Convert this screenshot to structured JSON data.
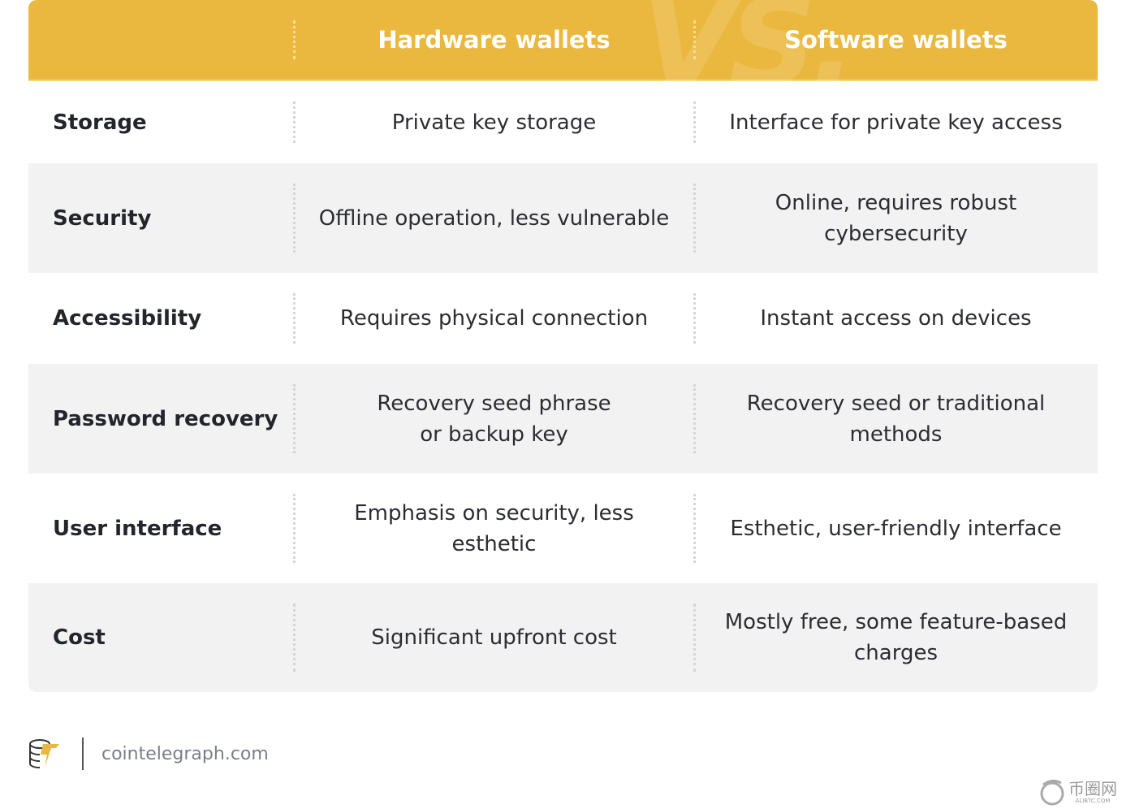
{
  "header": {
    "vs": "VS.",
    "col1": "Hardware wallets",
    "col2": "Software wallets"
  },
  "rows": [
    {
      "label": "Storage",
      "hardware": "Private key storage",
      "software": "Interface for private key access"
    },
    {
      "label": "Security",
      "hardware": "Offline operation, less vulnerable",
      "software": "Online, requires robust cybersecurity"
    },
    {
      "label": "Accessibility",
      "hardware": "Requires physical connection",
      "software": "Instant access on devices"
    },
    {
      "label": "Password recovery",
      "hardware": "Recovery seed phrase or backup key",
      "software": "Recovery seed or traditional methods"
    },
    {
      "label": "User interface",
      "hardware": "Emphasis on security, less esthetic",
      "software": "Esthetic, user-friendly interface"
    },
    {
      "label": "Cost",
      "hardware": "Significant upfront cost",
      "software": "Mostly free, some feature-based charges"
    }
  ],
  "footer": {
    "site": "cointelegraph.com",
    "watermark": "币圈网",
    "watermark_sub": "ALIBTC.COM"
  },
  "colors": {
    "header": "#ebb83f",
    "alt_row": "#f2f2f2"
  }
}
